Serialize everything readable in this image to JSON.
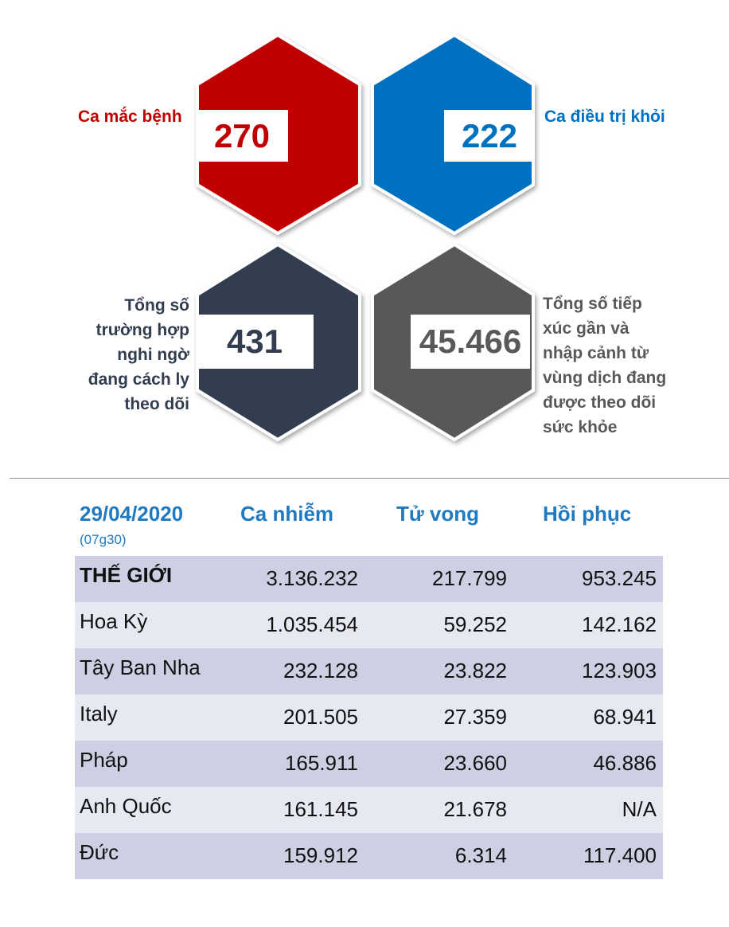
{
  "stats": {
    "cases": {
      "value": "270",
      "label": "Ca mắc bệnh",
      "color": "#c00000"
    },
    "recovered": {
      "value": "222",
      "label": "Ca điều trị khỏi",
      "color": "#0070c0"
    },
    "quarantine": {
      "value": "431",
      "label_lines": [
        "Tổng số",
        "trường hợp",
        "nghi ngờ",
        "đang cách ly",
        "theo dõi"
      ],
      "color": "#323d4f"
    },
    "monitored": {
      "value": "45.466",
      "label_lines": [
        "Tổng số tiếp",
        "xúc gần và",
        "nhập cảnh từ",
        "vùng dịch đang",
        "được theo dõi",
        "sức khỏe"
      ],
      "color": "#595959"
    }
  },
  "table": {
    "date": "29/04/2020",
    "time": "(07g30)",
    "headers": [
      "Ca nhiễm",
      "Tử vong",
      "Hồi phục"
    ],
    "rows": [
      {
        "name": "THẾ GIỚI",
        "cases": "3.136.232",
        "deaths": "217.799",
        "recovered": "953.245"
      },
      {
        "name": "Hoa Kỳ",
        "cases": "1.035.454",
        "deaths": "59.252",
        "recovered": "142.162"
      },
      {
        "name": "Tây Ban Nha",
        "cases": "232.128",
        "deaths": "23.822",
        "recovered": "123.903"
      },
      {
        "name": "Italy",
        "cases": "201.505",
        "deaths": "27.359",
        "recovered": "68.941"
      },
      {
        "name": "Pháp",
        "cases": "165.911",
        "deaths": "23.660",
        "recovered": "46.886"
      },
      {
        "name": "Anh Quốc",
        "cases": "161.145",
        "deaths": "21.678",
        "recovered": "N/A"
      },
      {
        "name": "Đức",
        "cases": "159.912",
        "deaths": "6.314",
        "recovered": "117.400"
      }
    ]
  }
}
